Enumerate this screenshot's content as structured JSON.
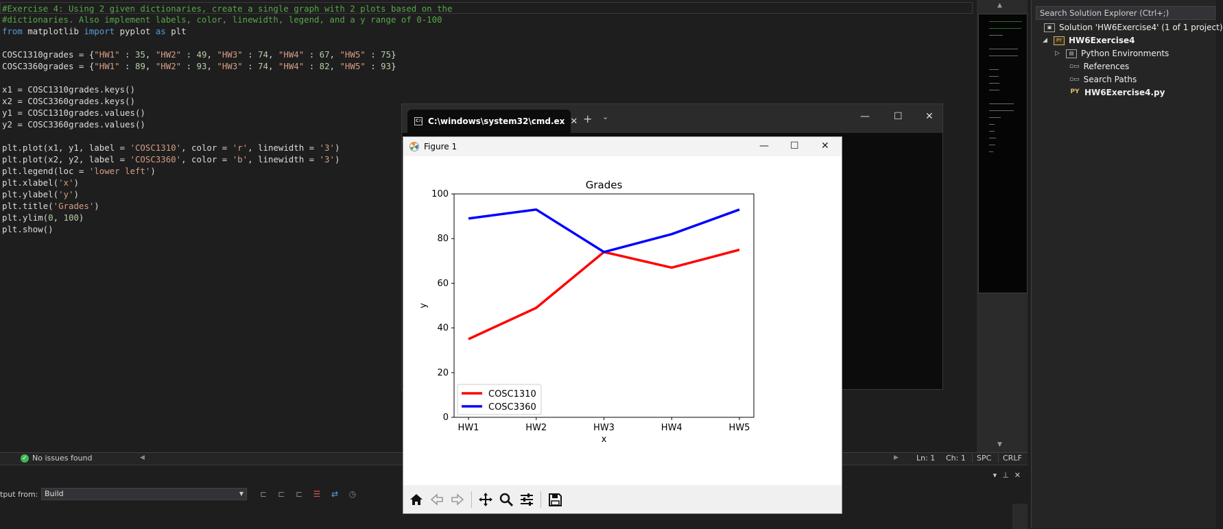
{
  "editor": {
    "lines": [
      [
        {
          "t": "#Exercise 4: Using 2 given dictionaries, create a single graph with 2 plots based on the",
          "c": "com"
        }
      ],
      [
        {
          "t": "#dictionaries. Also implement labels, color, linewidth, legend, and a y range of 0-100",
          "c": "com"
        }
      ],
      [
        {
          "t": "from",
          "c": "kw"
        },
        {
          "t": " matplotlib ",
          "c": ""
        },
        {
          "t": "import",
          "c": "kw"
        },
        {
          "t": " pyplot ",
          "c": ""
        },
        {
          "t": "as",
          "c": "kw"
        },
        {
          "t": " plt",
          "c": ""
        }
      ],
      [],
      [
        {
          "t": "COSC1310grades = {",
          "c": ""
        },
        {
          "t": "\"HW1\"",
          "c": "str"
        },
        {
          "t": " : ",
          "c": ""
        },
        {
          "t": "35",
          "c": "num"
        },
        {
          "t": ", ",
          "c": ""
        },
        {
          "t": "\"HW2\"",
          "c": "str"
        },
        {
          "t": " : ",
          "c": ""
        },
        {
          "t": "49",
          "c": "num"
        },
        {
          "t": ", ",
          "c": ""
        },
        {
          "t": "\"HW3\"",
          "c": "str"
        },
        {
          "t": " : ",
          "c": ""
        },
        {
          "t": "74",
          "c": "num"
        },
        {
          "t": ", ",
          "c": ""
        },
        {
          "t": "\"HW4\"",
          "c": "str"
        },
        {
          "t": " : ",
          "c": ""
        },
        {
          "t": "67",
          "c": "num"
        },
        {
          "t": ", ",
          "c": ""
        },
        {
          "t": "\"HW5\"",
          "c": "str"
        },
        {
          "t": " : ",
          "c": ""
        },
        {
          "t": "75",
          "c": "num"
        },
        {
          "t": "}",
          "c": ""
        }
      ],
      [
        {
          "t": "COSC3360grades = {",
          "c": ""
        },
        {
          "t": "\"HW1\"",
          "c": "str"
        },
        {
          "t": " : ",
          "c": ""
        },
        {
          "t": "89",
          "c": "num"
        },
        {
          "t": ", ",
          "c": ""
        },
        {
          "t": "\"HW2\"",
          "c": "str"
        },
        {
          "t": " : ",
          "c": ""
        },
        {
          "t": "93",
          "c": "num"
        },
        {
          "t": ", ",
          "c": ""
        },
        {
          "t": "\"HW3\"",
          "c": "str"
        },
        {
          "t": " : ",
          "c": ""
        },
        {
          "t": "74",
          "c": "num"
        },
        {
          "t": ", ",
          "c": ""
        },
        {
          "t": "\"HW4\"",
          "c": "str"
        },
        {
          "t": " : ",
          "c": ""
        },
        {
          "t": "82",
          "c": "num"
        },
        {
          "t": ", ",
          "c": ""
        },
        {
          "t": "\"HW5\"",
          "c": "str"
        },
        {
          "t": " : ",
          "c": ""
        },
        {
          "t": "93",
          "c": "num"
        },
        {
          "t": "}",
          "c": ""
        }
      ],
      [],
      [
        {
          "t": "x1 = COSC1310grades.keys()",
          "c": ""
        }
      ],
      [
        {
          "t": "x2 = COSC3360grades.keys()",
          "c": ""
        }
      ],
      [
        {
          "t": "y1 = COSC1310grades.values()",
          "c": ""
        }
      ],
      [
        {
          "t": "y2 = COSC3360grades.values()",
          "c": ""
        }
      ],
      [],
      [
        {
          "t": "plt.plot(x1, y1, label = ",
          "c": ""
        },
        {
          "t": "'COSC1310'",
          "c": "str"
        },
        {
          "t": ", color = ",
          "c": ""
        },
        {
          "t": "'r'",
          "c": "str"
        },
        {
          "t": ", linewidth = ",
          "c": ""
        },
        {
          "t": "'3'",
          "c": "str"
        },
        {
          "t": ")",
          "c": ""
        }
      ],
      [
        {
          "t": "plt.plot(x2, y2, label = ",
          "c": ""
        },
        {
          "t": "'COSC3360'",
          "c": "str"
        },
        {
          "t": ", color = ",
          "c": ""
        },
        {
          "t": "'b'",
          "c": "str"
        },
        {
          "t": ", linewidth = ",
          "c": ""
        },
        {
          "t": "'3'",
          "c": "str"
        },
        {
          "t": ")",
          "c": ""
        }
      ],
      [
        {
          "t": "plt.legend(loc = ",
          "c": ""
        },
        {
          "t": "'lower left'",
          "c": "str"
        },
        {
          "t": ")",
          "c": ""
        }
      ],
      [
        {
          "t": "plt.xlabel(",
          "c": ""
        },
        {
          "t": "'x'",
          "c": "str"
        },
        {
          "t": ")",
          "c": ""
        }
      ],
      [
        {
          "t": "plt.ylabel(",
          "c": ""
        },
        {
          "t": "'y'",
          "c": "str"
        },
        {
          "t": ")",
          "c": ""
        }
      ],
      [
        {
          "t": "plt.title(",
          "c": ""
        },
        {
          "t": "'Grades'",
          "c": "str"
        },
        {
          "t": ")",
          "c": ""
        }
      ],
      [
        {
          "t": "plt.ylim(",
          "c": ""
        },
        {
          "t": "0",
          "c": "num"
        },
        {
          "t": ", ",
          "c": ""
        },
        {
          "t": "100",
          "c": "num"
        },
        {
          "t": ")",
          "c": ""
        }
      ],
      [
        {
          "t": "plt.show()",
          "c": ""
        }
      ]
    ]
  },
  "status": {
    "issues": "No issues found",
    "ln": "Ln: 1",
    "ch": "Ch: 1",
    "spc": "SPC",
    "eol": "CRLF"
  },
  "output": {
    "label": "tput from:",
    "source": "Build"
  },
  "solution_explorer": {
    "search_placeholder": "Search Solution Explorer (Ctrl+;)",
    "solution": "Solution 'HW6Exercise4' (1 of 1 project)",
    "project": "HW6Exercise4",
    "items": [
      "Python Environments",
      "References",
      "Search Paths"
    ],
    "file": "HW6Exercise4.py"
  },
  "cmd": {
    "tab_title": "C:\\windows\\system32\\cmd.ex"
  },
  "figure": {
    "window_title": "Figure 1"
  },
  "chart_data": {
    "type": "line",
    "title": "Grades",
    "xlabel": "x",
    "ylabel": "y",
    "categories": [
      "HW1",
      "HW2",
      "HW3",
      "HW4",
      "HW5"
    ],
    "ylim": [
      0,
      100
    ],
    "yticks": [
      0,
      20,
      40,
      60,
      80,
      100
    ],
    "legend_loc": "lower left",
    "series": [
      {
        "name": "COSC1310",
        "color": "#ff0000",
        "values": [
          35,
          49,
          74,
          67,
          75
        ]
      },
      {
        "name": "COSC3360",
        "color": "#0000ff",
        "values": [
          89,
          93,
          74,
          82,
          93
        ]
      }
    ]
  }
}
